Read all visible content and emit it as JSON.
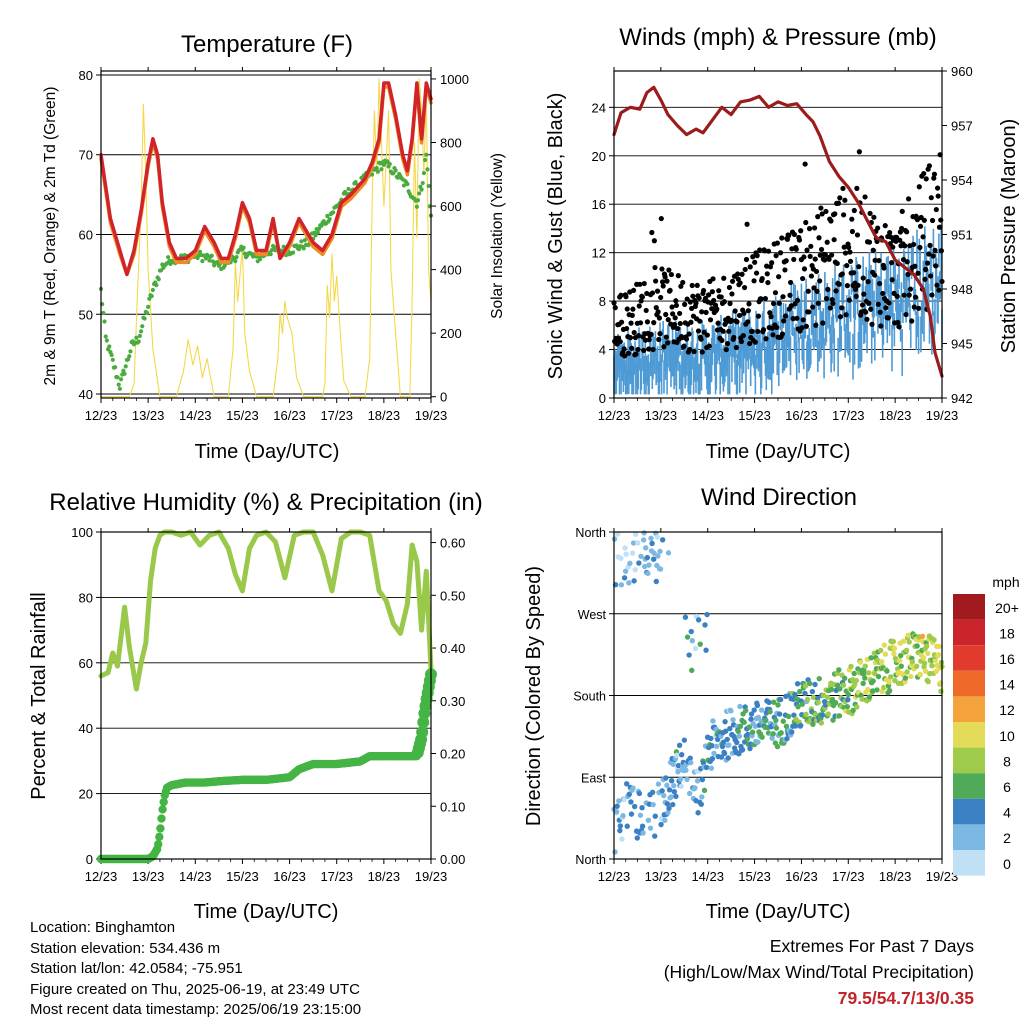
{
  "x_ticks": [
    "12/23",
    "13/23",
    "14/23",
    "15/23",
    "16/23",
    "17/23",
    "18/23",
    "19/23"
  ],
  "x_title": "Time (Day/UTC)",
  "colors": {
    "temp_red": "#d0232a",
    "temp_orange": "#f08a24",
    "dewpoint_green": "#4aac3e",
    "solar_yellow": "#f4d84a",
    "pressure_maroon": "#9b1c1c",
    "wind_blue": "#4e9ad4",
    "gust_black": "#000000",
    "rh_lightgreen": "#9ac84a",
    "precip_green": "#44b444",
    "extremes_red": "#c0252c"
  },
  "chart_data": [
    {
      "type": "line",
      "panel": "temperature",
      "title": "Temperature (F)",
      "xlabel": "Time (Day/UTC)",
      "ylabel": "2m & 9m T (Red, Orange) & 2m Td (Green)",
      "ylabel_right": "Solar Insolation (Yellow)",
      "ylim": [
        39.5,
        80.5
      ],
      "yticks": [
        40,
        50,
        60,
        70,
        80
      ],
      "ylim_right": [
        -4,
        1025
      ],
      "yticks_right": [
        0,
        200,
        400,
        600,
        800,
        1000
      ],
      "xlim": [
        0,
        7
      ],
      "grid": true,
      "series": [
        {
          "name": "2m T",
          "axis": "left",
          "x": [
            0,
            0.2,
            0.4,
            0.55,
            0.7,
            0.85,
            1.0,
            1.1,
            1.2,
            1.3,
            1.45,
            1.6,
            1.8,
            2.0,
            2.2,
            2.4,
            2.55,
            2.7,
            2.85,
            3.0,
            3.15,
            3.3,
            3.5,
            3.65,
            3.8,
            4.0,
            4.2,
            4.5,
            4.7,
            4.9,
            5.1,
            5.3,
            5.45,
            5.6,
            5.75,
            5.9,
            6.0,
            6.1,
            6.25,
            6.4,
            6.5,
            6.6,
            6.7,
            6.8,
            6.9,
            7.0
          ],
          "y": [
            70,
            62,
            58,
            55,
            58,
            63,
            69,
            72,
            70,
            64,
            59,
            57,
            57,
            58,
            61,
            59,
            57,
            57,
            60,
            64,
            62,
            58,
            58,
            62,
            57,
            59,
            62,
            59,
            58,
            60,
            64,
            65,
            66,
            67,
            69,
            72,
            79,
            79,
            75,
            70,
            68,
            72,
            79,
            72,
            79,
            77
          ]
        },
        {
          "name": "9m T",
          "axis": "left",
          "x": [
            0,
            0.2,
            0.4,
            0.55,
            0.7,
            0.85,
            1.0,
            1.1,
            1.2,
            1.3,
            1.45,
            1.6,
            1.8,
            2.0,
            2.2,
            2.4,
            2.55,
            2.7,
            2.85,
            3.0,
            3.15,
            3.3,
            3.5,
            3.65,
            3.8,
            4.0,
            4.2,
            4.5,
            4.7,
            4.9,
            5.1,
            5.3,
            5.45,
            5.6,
            5.75,
            5.9,
            6.0,
            6.1,
            6.25,
            6.4,
            6.5,
            6.6,
            6.7,
            6.8,
            6.9,
            7.0
          ],
          "y": [
            69.5,
            61.5,
            57.5,
            55,
            57.5,
            62.5,
            68.5,
            71.5,
            69.5,
            63.5,
            58.5,
            56.5,
            56.5,
            57.5,
            60.5,
            58.5,
            56.5,
            56.5,
            59.5,
            63.5,
            61.5,
            57.5,
            57.5,
            61.5,
            57,
            58.5,
            61.5,
            58.5,
            57.5,
            59.5,
            63.5,
            64.5,
            65.5,
            66.5,
            68.5,
            71.5,
            78.5,
            78.5,
            74.5,
            69.5,
            67.5,
            71.5,
            78.5,
            71.5,
            78.5,
            76.5
          ]
        },
        {
          "name": "2m Td",
          "axis": "left",
          "x": [
            0,
            0.1,
            0.25,
            0.4,
            0.5,
            0.65,
            0.8,
            0.95,
            1.1,
            1.3,
            1.5,
            1.8,
            2.0,
            2.3,
            2.5,
            2.8,
            3.0,
            3.3,
            3.6,
            4.0,
            4.4,
            4.8,
            5.2,
            5.6,
            5.8,
            6.0,
            6.2,
            6.5,
            6.7,
            6.8,
            6.9,
            7.0
          ],
          "y": [
            53,
            47,
            44,
            41,
            43,
            46,
            47,
            50,
            53,
            56,
            57,
            57,
            57.5,
            57,
            56,
            57,
            58,
            57,
            58,
            58,
            59,
            62,
            65,
            67,
            68,
            69,
            68,
            66,
            64,
            66,
            70,
            62
          ]
        },
        {
          "name": "Solar Insolation",
          "axis": "right",
          "x": [
            0,
            0.3,
            0.6,
            0.7,
            0.78,
            0.85,
            0.9,
            0.95,
            1.0,
            1.1,
            1.25,
            1.35,
            1.6,
            1.75,
            1.85,
            1.95,
            2.05,
            2.15,
            2.25,
            2.4,
            2.55,
            2.7,
            2.8,
            2.85,
            2.9,
            3.0,
            3.05,
            3.15,
            3.3,
            3.55,
            3.65,
            3.75,
            3.8,
            3.85,
            3.9,
            3.95,
            4.05,
            4.15,
            4.3,
            4.55,
            4.7,
            4.75,
            4.8,
            4.85,
            4.9,
            4.95,
            5.0,
            5.1,
            5.15,
            5.3,
            5.5,
            5.6,
            5.7,
            5.75,
            5.8,
            5.85,
            5.9,
            5.95,
            6.0,
            6.1,
            6.15,
            6.25,
            6.35,
            6.55,
            6.6,
            6.65,
            6.7,
            6.75,
            6.8,
            6.85,
            6.9,
            6.95,
            7.0
          ],
          "y": [
            0,
            0,
            0,
            40,
            350,
            600,
            920,
            700,
            400,
            150,
            0,
            0,
            0,
            80,
            180,
            100,
            160,
            60,
            120,
            0,
            0,
            0,
            150,
            420,
            300,
            470,
            200,
            80,
            0,
            0,
            0,
            120,
            260,
            200,
            300,
            250,
            200,
            60,
            0,
            0,
            0,
            40,
            350,
            250,
            450,
            300,
            380,
            150,
            50,
            0,
            0,
            0,
            120,
            600,
            900,
            700,
            1000,
            800,
            600,
            900,
            400,
            200,
            0,
            0,
            300,
            800,
            500,
            1000,
            900,
            700,
            950,
            400,
            300
          ]
        }
      ]
    },
    {
      "type": "scatter",
      "panel": "winds_pressure",
      "title": "Winds (mph) & Pressure (mb)",
      "xlabel": "Time (Day/UTC)",
      "ylabel": "Sonic Wind & Gust (Blue, Black)",
      "ylabel_right": "Station Pressure (Maroon)",
      "ylim": [
        0,
        27
      ],
      "yticks": [
        0,
        4,
        8,
        12,
        16,
        20,
        24
      ],
      "ylim_right": [
        942,
        960
      ],
      "yticks_right": [
        942,
        945,
        948,
        951,
        954,
        957,
        960
      ],
      "xlim": [
        0,
        7
      ],
      "grid": true,
      "wind_envelope": {
        "x": [
          0,
          1,
          2,
          3,
          4,
          5,
          6,
          7
        ],
        "y": [
          4,
          5,
          5,
          6,
          8,
          9,
          10,
          12
        ]
      },
      "gust_envelope": {
        "x": [
          0,
          1,
          2,
          3,
          4,
          5,
          6,
          7
        ],
        "y": [
          7,
          9,
          8,
          10,
          12,
          15,
          12,
          18
        ]
      },
      "series": [
        {
          "name": "Station Pressure",
          "axis": "right",
          "x": [
            0,
            0.15,
            0.35,
            0.55,
            0.7,
            0.85,
            1.0,
            1.15,
            1.35,
            1.55,
            1.75,
            1.9,
            2.1,
            2.3,
            2.5,
            2.7,
            2.9,
            3.1,
            3.3,
            3.5,
            3.7,
            3.9,
            4.1,
            4.25,
            4.4,
            4.6,
            4.8,
            5.0,
            5.2,
            5.4,
            5.6,
            5.8,
            6.0,
            6.2,
            6.4,
            6.6,
            6.75,
            6.85,
            7.0
          ],
          "y": [
            956.5,
            957.7,
            958,
            957.9,
            958.8,
            959.1,
            958.4,
            957.6,
            957,
            956.5,
            956.8,
            956.6,
            957.3,
            958,
            957.6,
            958.3,
            958.4,
            958.6,
            958,
            958.3,
            958.1,
            958.2,
            957.6,
            957.2,
            956.4,
            955,
            954.2,
            953.6,
            952.8,
            951.8,
            950.8,
            950.6,
            949.6,
            949.2,
            948.8,
            948,
            946.5,
            944.5,
            943.2
          ]
        }
      ]
    },
    {
      "type": "line",
      "panel": "humidity_precip",
      "title": "Relative Humidity (%) & Precipitation (in)",
      "xlabel": "Time (Day/UTC)",
      "ylabel": "Percent & Total Rainfall",
      "ylim": [
        0,
        100
      ],
      "yticks": [
        0,
        20,
        40,
        60,
        80,
        100
      ],
      "ylim_right": [
        0,
        0.62
      ],
      "yticks_right": [
        "0.00",
        "0.10",
        "0.20",
        "0.30",
        "0.40",
        "0.50",
        "0.60"
      ],
      "xlim": [
        0,
        7
      ],
      "grid": true,
      "series": [
        {
          "name": "Relative Humidity",
          "axis": "left",
          "x": [
            0,
            0.15,
            0.25,
            0.35,
            0.5,
            0.6,
            0.75,
            0.85,
            0.95,
            1.05,
            1.15,
            1.25,
            1.35,
            1.5,
            1.7,
            1.9,
            2.1,
            2.3,
            2.5,
            2.7,
            2.85,
            3.0,
            3.15,
            3.3,
            3.5,
            3.7,
            3.9,
            4.1,
            4.3,
            4.5,
            4.7,
            4.9,
            5.1,
            5.3,
            5.5,
            5.7,
            5.9,
            6.05,
            6.2,
            6.35,
            6.5,
            6.6,
            6.7,
            6.8,
            6.9,
            7.0
          ],
          "y": [
            56,
            57,
            63,
            59,
            77,
            65,
            52,
            60,
            66,
            85,
            95,
            99,
            100,
            100,
            99,
            100,
            96,
            99,
            100,
            95,
            87,
            82,
            95,
            99,
            100,
            97,
            86,
            99,
            100,
            100,
            93,
            82,
            98,
            100,
            100,
            99,
            82,
            79,
            72,
            69,
            78,
            96,
            91,
            70,
            88,
            58
          ]
        },
        {
          "name": "Total Precipitation",
          "axis": "right",
          "x": [
            0,
            0.5,
            1.0,
            1.1,
            1.2,
            1.25,
            1.3,
            1.35,
            1.4,
            1.5,
            1.8,
            2.2,
            2.6,
            3.0,
            3.5,
            4.0,
            4.2,
            4.5,
            5.0,
            5.5,
            5.7,
            6.0,
            6.5,
            6.7,
            6.8,
            6.85,
            6.9,
            7.0
          ],
          "y": [
            0,
            0,
            0,
            0.005,
            0.02,
            0.05,
            0.09,
            0.12,
            0.135,
            0.14,
            0.145,
            0.145,
            0.148,
            0.15,
            0.15,
            0.155,
            0.17,
            0.18,
            0.18,
            0.185,
            0.195,
            0.195,
            0.195,
            0.195,
            0.23,
            0.27,
            0.3,
            0.35
          ]
        }
      ]
    },
    {
      "type": "scatter",
      "panel": "wind_direction",
      "title": "Wind Direction",
      "xlabel": "Time (Day/UTC)",
      "ylabel": "Direction (Colored By Speed)",
      "ylim": [
        0,
        360
      ],
      "yticks": [
        "North",
        "East",
        "South",
        "West",
        "North"
      ],
      "xlim": [
        0,
        7
      ],
      "grid": true,
      "colorbar": {
        "title": "mph",
        "labels": [
          "20+",
          "18",
          "16",
          "14",
          "12",
          "10",
          "8",
          "6",
          "4",
          "2",
          "0"
        ],
        "colors": [
          "#a11a1e",
          "#c9252b",
          "#e03b2d",
          "#ee6a2b",
          "#f4a23c",
          "#e4dc58",
          "#9fcb4a",
          "#4fab58",
          "#3b80c3",
          "#7db8e3",
          "#bfe0f5"
        ]
      }
    }
  ],
  "info": {
    "location": "Location: Binghamton",
    "elevation": "Station elevation: 534.436 m",
    "latlon": "Station lat/lon: 42.0584; -75.951",
    "created": "Figure created on Thu, 2025-06-19, at 23:49 UTC",
    "latest": "Most recent data timestamp: 2025/06/19 23:15:00"
  },
  "extremes": {
    "title": "Extremes For Past 7 Days",
    "subtitle": "(High/Low/Max Wind/Total Precipitation)",
    "values": "79.5/54.7/13/0.35"
  }
}
